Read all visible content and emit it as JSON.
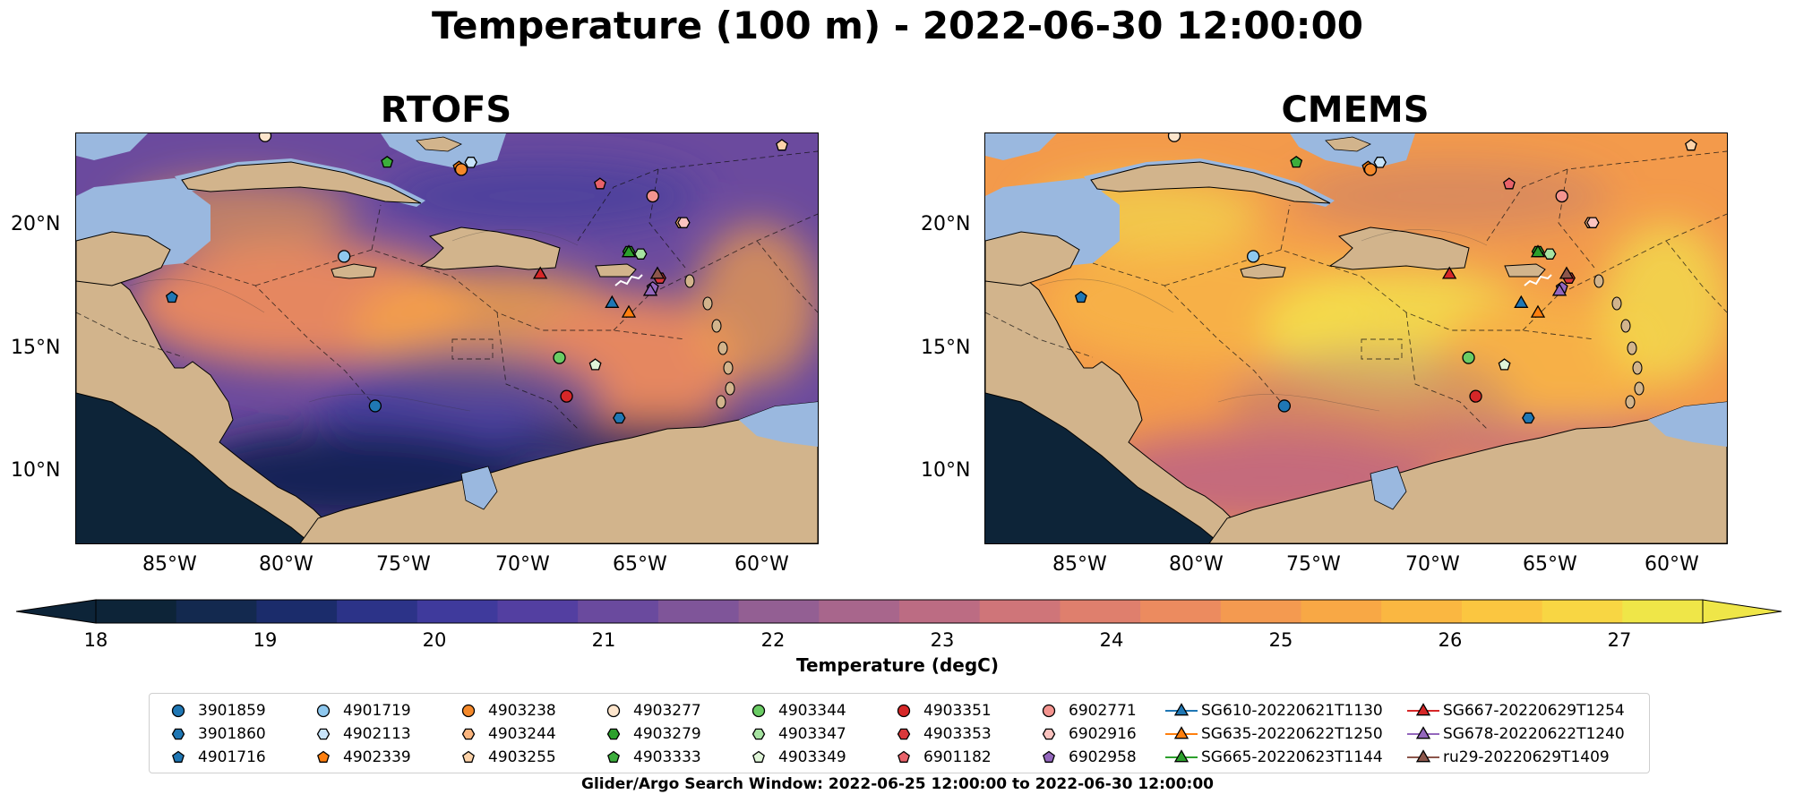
{
  "title": "Temperature (100 m) - 2022-06-30 12:00:00",
  "panels": [
    {
      "title": "RTOFS",
      "scheme": "cool"
    },
    {
      "title": "CMEMS",
      "scheme": "warm"
    }
  ],
  "axes": {
    "lat_ticks": [
      "20°N",
      "15°N",
      "10°N"
    ],
    "lon_ticks": [
      "85°W",
      "80°W",
      "75°W",
      "70°W",
      "65°W",
      "60°W"
    ]
  },
  "colorbar": {
    "label": "Temperature (degC)",
    "ticks": [
      "18",
      "19",
      "20",
      "21",
      "22",
      "23",
      "24",
      "25",
      "26",
      "27"
    ],
    "range": [
      17.5,
      27.5
    ],
    "colors": [
      "#0d2438",
      "#13294f",
      "#1b2c6b",
      "#2c3388",
      "#3f3a9c",
      "#533fa1",
      "#6a4a9e",
      "#7f5599",
      "#935f93",
      "#a8668c",
      "#bc6c83",
      "#cf7579",
      "#df7f6d",
      "#ec8b5f",
      "#f49a50",
      "#f8a845",
      "#fab741",
      "#fbc640",
      "#f8d643",
      "#efe648"
    ]
  },
  "legend": {
    "items": [
      {
        "label": "3901859",
        "marker": "circle",
        "color": "#1f77b4"
      },
      {
        "label": "3901860",
        "marker": "hexagon",
        "color": "#1f77b4"
      },
      {
        "label": "4901716",
        "marker": "pentagon",
        "color": "#1f77b4"
      },
      {
        "label": "4901719",
        "marker": "circle",
        "color": "#8ec8ef"
      },
      {
        "label": "4902113",
        "marker": "hexagon",
        "color": "#c8e4fa"
      },
      {
        "label": "4902339",
        "marker": "pentagon",
        "color": "#ff7f0e"
      },
      {
        "label": "4903238",
        "marker": "circle",
        "color": "#f5892a"
      },
      {
        "label": "4903244",
        "marker": "hexagon",
        "color": "#fbb57e"
      },
      {
        "label": "4903255",
        "marker": "pentagon",
        "color": "#fdd3a9"
      },
      {
        "label": "4903277",
        "marker": "circle",
        "color": "#fde5cc"
      },
      {
        "label": "4903279",
        "marker": "hexagon",
        "color": "#2ca02c"
      },
      {
        "label": "4903333",
        "marker": "pentagon",
        "color": "#3cae3c"
      },
      {
        "label": "4903344",
        "marker": "circle",
        "color": "#6acc64"
      },
      {
        "label": "4903347",
        "marker": "hexagon",
        "color": "#a6e3a1"
      },
      {
        "label": "4903349",
        "marker": "pentagon",
        "color": "#dff5d8"
      },
      {
        "label": "4903351",
        "marker": "circle",
        "color": "#d62728"
      },
      {
        "label": "4903353",
        "marker": "hexagon",
        "color": "#d9383a"
      },
      {
        "label": "6901182",
        "marker": "pentagon",
        "color": "#e8626a"
      },
      {
        "label": "6902771",
        "marker": "circle",
        "color": "#f4948f"
      },
      {
        "label": "6902916",
        "marker": "hexagon",
        "color": "#fbc3bf"
      },
      {
        "label": "6902958",
        "marker": "pentagon",
        "color": "#9467bd"
      },
      {
        "label": "SG610-20220621T1130",
        "marker": "triangle",
        "color": "#1f77b4"
      },
      {
        "label": "SG635-20220622T1250",
        "marker": "triangle",
        "color": "#ff7f0e"
      },
      {
        "label": "SG665-20220623T1144",
        "marker": "triangle",
        "color": "#2ca02c"
      },
      {
        "label": "SG667-20220629T1254",
        "marker": "triangle",
        "color": "#d62728"
      },
      {
        "label": "SG678-20220622T1240",
        "marker": "triangle",
        "color": "#9467bd"
      },
      {
        "label": "ru29-20220629T1409",
        "marker": "triangle",
        "color": "#8c564b"
      }
    ]
  },
  "footer": "Glider/Argo Search Window: 2022-06-25 12:00:00 to 2022-06-30 12:00:00",
  "map_colors": {
    "land": "#d2b48c",
    "shallow": "#9ab8df",
    "outline": "#000000"
  }
}
